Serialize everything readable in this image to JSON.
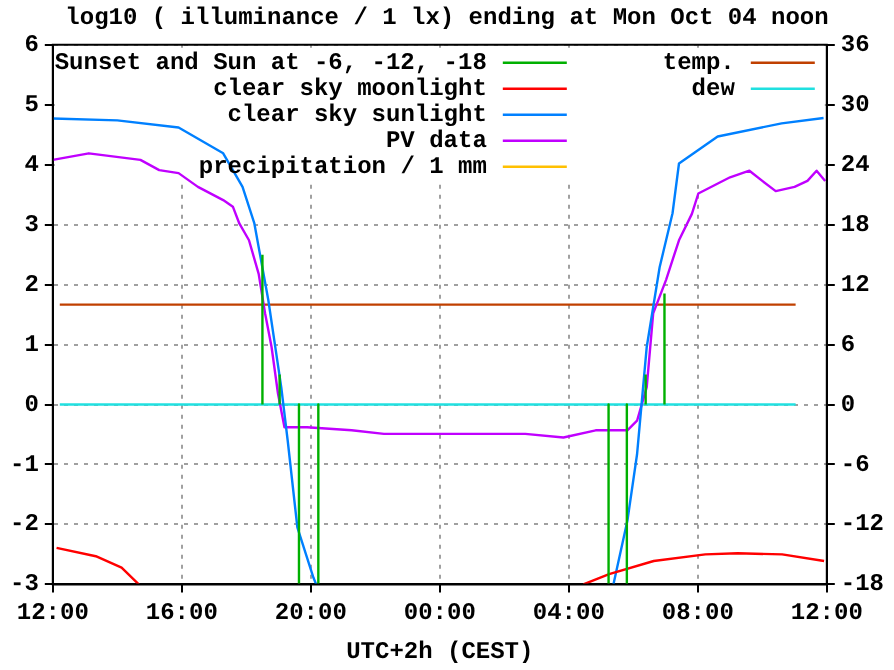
{
  "chart_data": {
    "type": "line",
    "title": "log10 ( illuminance / 1 lx) ending at Mon Oct 04 noon",
    "xlabel": "UTC+2h (CEST)",
    "xlim": [
      "--10-03T12:00",
      "--10-04T12:00"
    ],
    "xticks": [
      {
        "value": "--10-03T12:00",
        "label": "12:00"
      },
      {
        "value": "--10-03T16:00",
        "label": "16:00"
      },
      {
        "value": "--10-03T20:00",
        "label": "20:00"
      },
      {
        "value": "--10-04T00:00",
        "label": "00:00"
      },
      {
        "value": "--10-04T04:00",
        "label": "04:00"
      },
      {
        "value": "--10-04T08:00",
        "label": "08:00"
      },
      {
        "value": "--10-04T12:00",
        "label": "12:00"
      }
    ],
    "ylim": [
      -3,
      6
    ],
    "yticks": [
      -3,
      -2,
      -1,
      0,
      1,
      2,
      3,
      4,
      5,
      6
    ],
    "y2lim": [
      -18,
      36
    ],
    "y2ticks": [
      -18,
      -12,
      -6,
      0,
      6,
      12,
      18,
      24,
      30,
      36
    ],
    "grid": true,
    "legend": "top",
    "line_style": "solid",
    "marker": "none",
    "series": [
      {
        "name": "Sunset and Sun at -6, -12, -18",
        "color": "#00b000",
        "x": [
          "--10-03T18:30",
          "--10-03T18:30",
          null,
          "--10-03T19:02",
          "--10-03T19:02",
          null,
          "--10-03T19:38",
          "--10-03T19:38",
          null,
          "--10-03T20:14",
          "--10-03T20:14",
          null,
          "--10-04T05:14",
          "--10-04T05:14",
          null,
          "--10-04T05:48",
          "--10-04T05:48",
          null,
          "--10-04T06:23",
          "--10-04T06:23",
          null,
          "--10-04T06:58",
          "--10-04T06:58"
        ],
        "values": [
          0,
          2.5,
          null,
          0,
          0.5,
          null,
          0,
          -3,
          null,
          0,
          -3,
          null,
          0,
          -3,
          null,
          0,
          -3,
          null,
          0,
          0.5,
          null,
          0,
          1.85
        ]
      },
      {
        "name": "clear sky moonlight",
        "color": "#ff0000",
        "x": [
          "--10-03T12:07",
          "--10-03T13:20",
          "--10-03T14:08",
          "--10-03T14:40",
          null,
          "--10-04T04:27",
          "--10-04T05:15",
          "--10-04T06:38",
          "--10-04T08:14",
          "--10-04T09:14",
          "--10-04T10:37",
          "--10-04T11:55"
        ],
        "values": [
          -2.39,
          -2.53,
          -2.72,
          -3,
          null,
          -3,
          -2.83,
          -2.61,
          -2.5,
          -2.48,
          -2.5,
          -2.61
        ]
      },
      {
        "name": "clear sky sunlight",
        "color": "#0080ff",
        "x": [
          "--10-03T12:00",
          "--10-03T14:00",
          "--10-03T15:54",
          "--10-03T17:17",
          "--10-03T17:53",
          "--10-03T18:15",
          "--10-03T18:41",
          "--10-03T19:05",
          "--10-03T19:17",
          "--10-03T19:35",
          "--10-03T20:05",
          "--10-03T20:10",
          null,
          "--10-04T05:23",
          "--10-04T05:49",
          "--10-04T06:07",
          "--10-04T06:25",
          "--10-04T06:49",
          "--10-04T07:13",
          "--10-04T07:25",
          "--10-04T08:37",
          "--10-04T10:36",
          "--10-04T11:54"
        ],
        "values": [
          4.77,
          4.74,
          4.62,
          4.19,
          3.63,
          3.02,
          1.74,
          0.29,
          -0.6,
          -2.05,
          -2.89,
          -3,
          null,
          -3,
          -1.94,
          -0.83,
          0.96,
          2.29,
          3.19,
          4.02,
          4.47,
          4.69,
          4.78
        ]
      },
      {
        "name": "PV data",
        "color": "#c000ff",
        "x": [
          "--10-03T12:00",
          "--10-03T13:07",
          "--10-03T14:43",
          "--10-03T15:18",
          "--10-03T15:54",
          "--10-03T16:30",
          "--10-03T17:17",
          "--10-03T17:35",
          "--10-03T17:47",
          "--10-03T18:05",
          "--10-03T18:23",
          "--10-03T18:35",
          "--10-03T18:47",
          "--10-03T18:59",
          "--10-03T19:11",
          "--10-03T19:53",
          "--10-03T21:16",
          "--10-03T22:16",
          "--10-04T00:16",
          "--10-04T02:39",
          "--10-04T03:50",
          "--10-04T04:50",
          "--10-04T05:49",
          "--10-04T06:07",
          "--10-04T06:25",
          "--10-04T06:37",
          "--10-04T07:01",
          "--10-04T07:25",
          "--10-04T07:49",
          "--10-04T08:01",
          "--10-04T09:00",
          "--10-04T09:36",
          "--10-04T10:00",
          "--10-04T10:25",
          "--10-04T11:00",
          "--10-04T11:24",
          "--10-04T11:41",
          "--10-04T11:57"
        ],
        "values": [
          4.08,
          4.19,
          4.08,
          3.91,
          3.86,
          3.63,
          3.41,
          3.3,
          3.02,
          2.74,
          2.18,
          1.52,
          0.96,
          0.18,
          -0.38,
          -0.38,
          -0.43,
          -0.49,
          -0.49,
          -0.49,
          -0.55,
          -0.43,
          -0.43,
          -0.27,
          0.29,
          1.52,
          2.08,
          2.74,
          3.18,
          3.52,
          3.79,
          3.9,
          3.73,
          3.56,
          3.63,
          3.73,
          3.9,
          3.73
        ]
      },
      {
        "name": "precipitation / 1 mm",
        "color": "#ffc000"
      },
      {
        "name": "temp.",
        "color": "#c04000",
        "axis": "y2",
        "x": [
          "--10-03T12:13",
          "--10-04T11:02"
        ],
        "values": [
          10,
          10
        ]
      },
      {
        "name": "dew",
        "color": "#20e0e0",
        "axis": "y2",
        "x": [
          "--10-03T12:13",
          "--10-04T11:02"
        ],
        "values": [
          0,
          0
        ]
      }
    ]
  }
}
